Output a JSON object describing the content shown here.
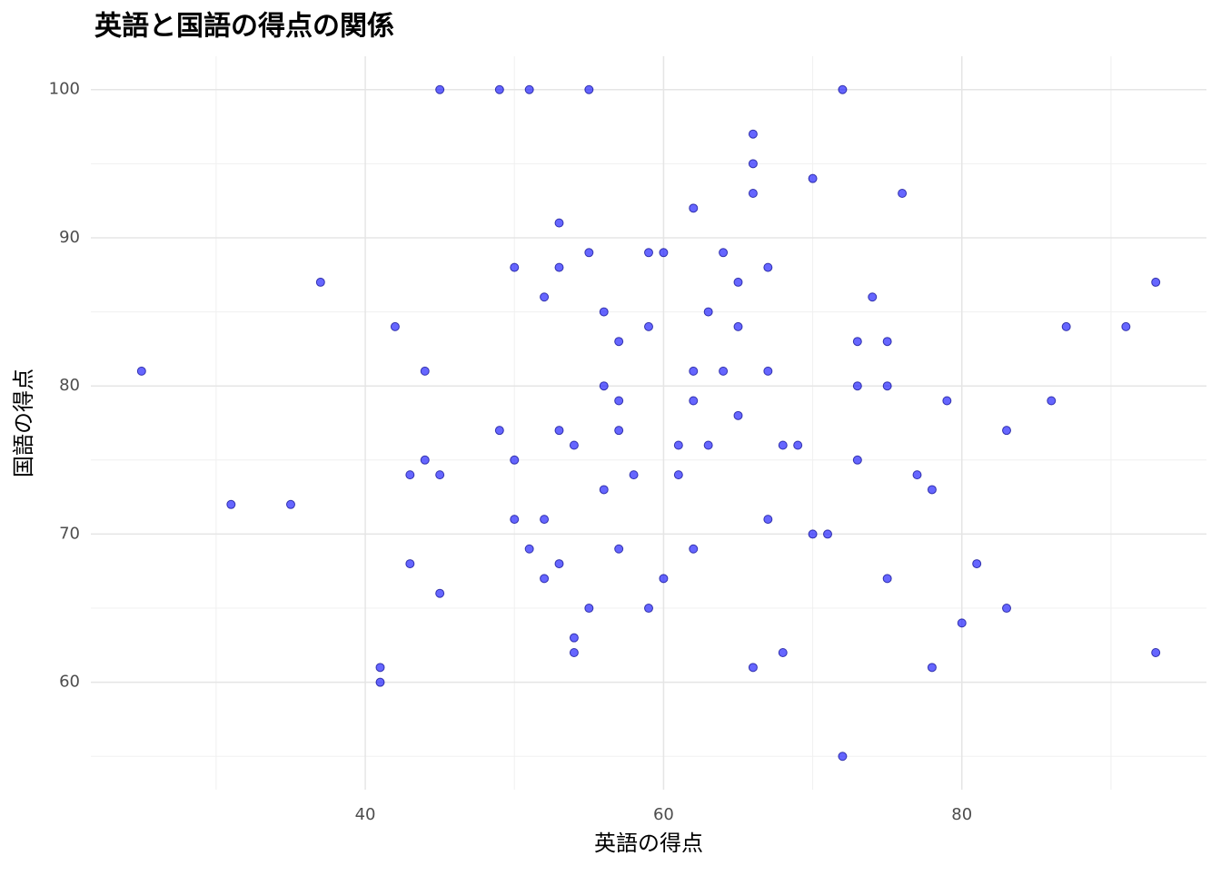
{
  "chart_data": {
    "type": "scatter",
    "title": "英語と国語の得点の関係",
    "x_label": "英語の得点",
    "y_label": "国語の得点",
    "color": "#0000ff",
    "grid": true,
    "xlim": [
      21.6,
      96.4
    ],
    "ylim": [
      52.75,
      102.25
    ],
    "xticks": [
      40,
      60,
      80
    ],
    "yticks": [
      60,
      70,
      80,
      90,
      100
    ],
    "xminor": [
      30,
      50,
      70,
      90
    ],
    "yminor": [
      55,
      65,
      75,
      85,
      95
    ],
    "x": [
      45,
      49,
      51,
      55,
      72,
      66,
      66,
      66,
      70,
      76,
      62,
      53,
      55,
      59,
      60,
      64,
      50,
      53,
      67,
      37,
      65,
      93,
      52,
      74,
      56,
      63,
      42,
      59,
      65,
      87,
      91,
      57,
      73,
      75,
      25,
      44,
      62,
      64,
      67,
      56,
      73,
      75,
      57,
      62,
      79,
      86,
      65,
      49,
      53,
      57,
      83,
      54,
      61,
      63,
      68,
      69,
      44,
      50,
      73,
      43,
      45,
      58,
      61,
      77,
      56,
      78,
      31,
      35,
      50,
      52,
      67,
      70,
      71,
      51,
      57,
      62,
      43,
      53,
      81,
      52,
      60,
      75,
      45,
      55,
      59,
      83,
      80,
      54,
      54,
      68,
      93,
      41,
      66,
      78,
      41,
      72
    ],
    "values": [
      100,
      100,
      100,
      100,
      100,
      97,
      95,
      93,
      94,
      93,
      92,
      91,
      89,
      89,
      89,
      89,
      88,
      88,
      88,
      87,
      87,
      87,
      86,
      86,
      85,
      85,
      84,
      84,
      84,
      84,
      84,
      83,
      83,
      83,
      81,
      81,
      81,
      81,
      81,
      80,
      80,
      80,
      79,
      79,
      79,
      79,
      78,
      77,
      77,
      77,
      77,
      76,
      76,
      76,
      76,
      76,
      75,
      75,
      75,
      74,
      74,
      74,
      74,
      74,
      73,
      73,
      72,
      72,
      71,
      71,
      71,
      70,
      70,
      69,
      69,
      69,
      68,
      68,
      68,
      67,
      67,
      67,
      66,
      65,
      65,
      65,
      64,
      63,
      62,
      62,
      62,
      61,
      61,
      61,
      60,
      55
    ]
  }
}
